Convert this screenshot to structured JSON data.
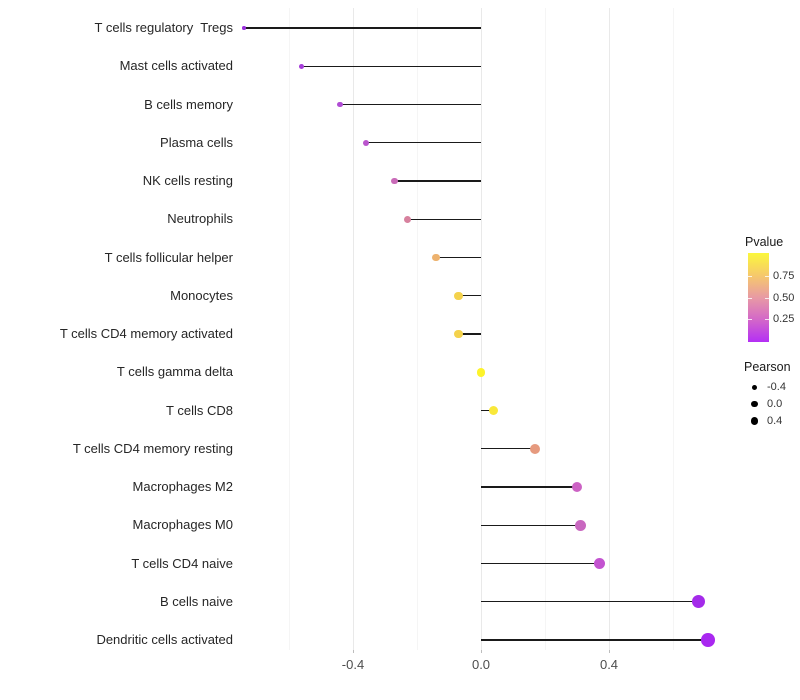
{
  "chart_data": {
    "type": "scatter",
    "variant": "lollipop",
    "title": "",
    "xlabel": "",
    "ylabel": "",
    "background_color": "#ffffff",
    "segment_color": "#1a1a1a",
    "xlim": [
      -0.755,
      0.785
    ],
    "x_ticks": [
      {
        "value": -0.4,
        "label": "-0.4"
      },
      {
        "value": 0.0,
        "label": "0.0"
      },
      {
        "value": 0.4,
        "label": "0.4"
      }
    ],
    "x_major_gridlines": [
      -0.4,
      0.0,
      0.4
    ],
    "x_minor_gridlines": [
      -0.6,
      -0.2,
      0.2,
      0.6
    ],
    "points": [
      {
        "category": "T cells regulatory  Tregs",
        "pearson": -0.74,
        "color": "#9b30dd"
      },
      {
        "category": "Mast cells activated",
        "pearson": -0.56,
        "color": "#a63fd9"
      },
      {
        "category": "B cells memory",
        "pearson": -0.44,
        "color": "#b04cd4"
      },
      {
        "category": "Plasma cells",
        "pearson": -0.36,
        "color": "#ba55cd"
      },
      {
        "category": "NK cells resting",
        "pearson": -0.27,
        "color": "#c96bb8"
      },
      {
        "category": "Neutrophils",
        "pearson": -0.23,
        "color": "#d7819e"
      },
      {
        "category": "T cells follicular helper",
        "pearson": -0.14,
        "color": "#edb26e"
      },
      {
        "category": "Monocytes",
        "pearson": -0.07,
        "color": "#f4d24c"
      },
      {
        "category": "T cells CD4 memory activated",
        "pearson": -0.07,
        "color": "#f4d24c"
      },
      {
        "category": "T cells gamma delta",
        "pearson": 0.0,
        "color": "#fdf32b"
      },
      {
        "category": "T cells CD8",
        "pearson": 0.04,
        "color": "#f9e83a"
      },
      {
        "category": "T cells CD4 memory resting",
        "pearson": 0.17,
        "color": "#e69a7e"
      },
      {
        "category": "Macrophages M2",
        "pearson": 0.3,
        "color": "#cc62c4"
      },
      {
        "category": "Macrophages M0",
        "pearson": 0.31,
        "color": "#c968c0"
      },
      {
        "category": "T cells CD4 naive",
        "pearson": 0.37,
        "color": "#c353d0"
      },
      {
        "category": "B cells naive",
        "pearson": 0.68,
        "color": "#a42bea"
      },
      {
        "category": "Dendritic cells activated",
        "pearson": 0.71,
        "color": "#a928f0"
      }
    ],
    "size_scale": {
      "p_min": -0.74,
      "p_max": 0.71,
      "d_min": 3.5,
      "d_max": 13.7
    },
    "legend_pvalue": {
      "title": "Pvalue",
      "tick_labels": [
        "0.75",
        "0.50",
        "0.25"
      ],
      "gradient_stops": [
        "#fbf73c",
        "#f6c96b",
        "#e89aa4",
        "#d367c9",
        "#b42ff5"
      ],
      "range_top_to_bottom": [
        1.0,
        0.0
      ]
    },
    "legend_pearson": {
      "title": "Pearson",
      "items": [
        {
          "label": "-0.4",
          "diameter": 5.0
        },
        {
          "label": "0.0",
          "diameter": 6.5
        },
        {
          "label": "0.4",
          "diameter": 7.8
        }
      ]
    }
  }
}
